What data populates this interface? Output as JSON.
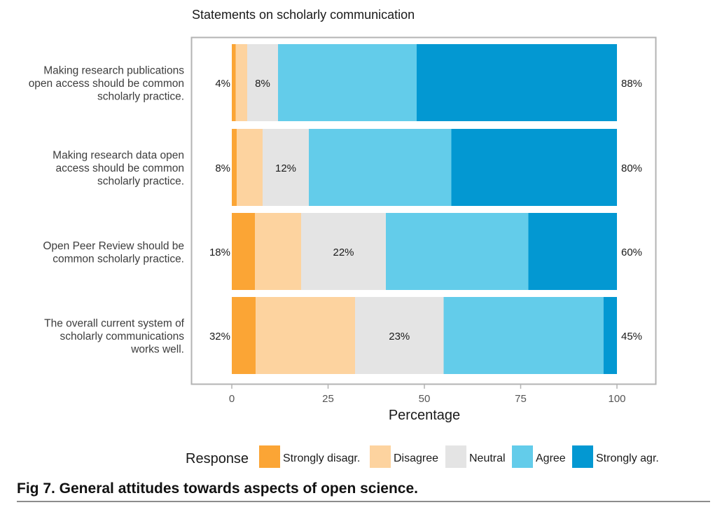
{
  "chart_data": {
    "type": "bar",
    "orientation": "horizontal",
    "stacked": true,
    "title": "Statements on scholarly communication",
    "xlabel": "Percentage",
    "ylabel": "",
    "xlim": [
      0,
      100
    ],
    "xticks": [
      0,
      25,
      50,
      75,
      100
    ],
    "grid": false,
    "legend_position": "bottom",
    "legend_title": "Response",
    "categories": [
      "Making research publications open access should be common scholarly practice.",
      "Making research data open access should be common scholarly practice.",
      "Open Peer Review should be common scholarly practice.",
      "The overall current system of scholarly communications works well."
    ],
    "category_label_lines": [
      [
        "Making research publications",
        "open access should be common",
        "scholarly practice."
      ],
      [
        "Making research data open",
        "access should be common",
        "scholarly practice."
      ],
      [
        "Open Peer Review should be",
        "common scholarly practice."
      ],
      [
        "The overall current system of",
        "scholarly communications",
        "works well."
      ]
    ],
    "series": [
      {
        "name": "Strongly disagr.",
        "color": "#FBA535",
        "values": [
          1,
          1.3,
          6,
          6.2
        ]
      },
      {
        "name": "Disagree",
        "color": "#FDD39F",
        "values": [
          3,
          6.7,
          12,
          25.8
        ]
      },
      {
        "name": "Neutral",
        "color": "#E4E4E4",
        "values": [
          8,
          12,
          22,
          23
        ]
      },
      {
        "name": "Agree",
        "color": "#63CCEA",
        "values": [
          36,
          37,
          37,
          41.5
        ]
      },
      {
        "name": "Strongly agr.",
        "color": "#0398D2",
        "values": [
          52,
          43,
          23,
          3.5
        ]
      }
    ],
    "left_labels": [
      "4%",
      "8%",
      "18%",
      "32%"
    ],
    "neutral_labels": [
      "8%",
      "12%",
      "22%",
      "23%"
    ],
    "right_labels": [
      "88%",
      "80%",
      "60%",
      "45%"
    ]
  },
  "caption": "Fig 7. General attitudes towards aspects of open science."
}
